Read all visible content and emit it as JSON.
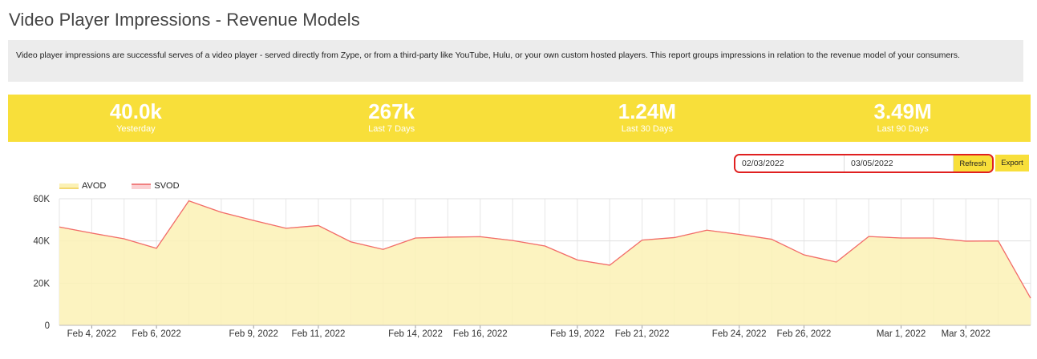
{
  "page": {
    "title": "Video Player Impressions - Revenue Models",
    "description": "Video player impressions are successful serves of a video player - served directly from Zype, or from a third-party like YouTube, Hulu, or your own custom hosted players. This report groups impressions in relation to the revenue model of your consumers."
  },
  "stats": [
    {
      "value": "40.0k",
      "label": "Yesterday"
    },
    {
      "value": "267k",
      "label": "Last 7 Days"
    },
    {
      "value": "1.24M",
      "label": "Last 30 Days"
    },
    {
      "value": "3.49M",
      "label": "Last 90 Days"
    }
  ],
  "controls": {
    "start_date": "02/03/2022",
    "end_date": "03/05/2022",
    "refresh_label": "Refresh",
    "export_label": "Export"
  },
  "colors": {
    "accent": "#f8df3a",
    "avod_fill": "#fbf1b5",
    "svod_line": "#f26b6b"
  },
  "chart_data": {
    "type": "area",
    "legend": [
      {
        "name": "AVOD"
      },
      {
        "name": "SVOD"
      }
    ],
    "legend_position": "top-left",
    "grid": true,
    "ylim": [
      0,
      60000
    ],
    "yticks": [
      0,
      20000,
      40000,
      60000
    ],
    "ytick_labels": [
      "0",
      "20K",
      "40K",
      "60K"
    ],
    "x": [
      "Feb 3, 2022",
      "Feb 4, 2022",
      "Feb 5, 2022",
      "Feb 6, 2022",
      "Feb 7, 2022",
      "Feb 8, 2022",
      "Feb 9, 2022",
      "Feb 10, 2022",
      "Feb 11, 2022",
      "Feb 12, 2022",
      "Feb 13, 2022",
      "Feb 14, 2022",
      "Feb 15, 2022",
      "Feb 16, 2022",
      "Feb 17, 2022",
      "Feb 18, 2022",
      "Feb 19, 2022",
      "Feb 20, 2022",
      "Feb 21, 2022",
      "Feb 22, 2022",
      "Feb 23, 2022",
      "Feb 24, 2022",
      "Feb 25, 2022",
      "Feb 26, 2022",
      "Feb 27, 2022",
      "Feb 28, 2022",
      "Mar 1, 2022",
      "Mar 2, 2022",
      "Mar 3, 2022",
      "Mar 4, 2022",
      "Mar 5, 2022"
    ],
    "xtick_labels": [
      {
        "x": "Feb 4, 2022",
        "label": "Feb 4, 2022"
      },
      {
        "x": "Feb 6, 2022",
        "label": "Feb 6, 2022"
      },
      {
        "x": "Feb 9, 2022",
        "label": "Feb 9, 2022"
      },
      {
        "x": "Feb 11, 2022",
        "label": "Feb 11, 2022"
      },
      {
        "x": "Feb 14, 2022",
        "label": "Feb 14, 2022"
      },
      {
        "x": "Feb 16, 2022",
        "label": "Feb 16, 2022"
      },
      {
        "x": "Feb 19, 2022",
        "label": "Feb 19, 2022"
      },
      {
        "x": "Feb 21, 2022",
        "label": "Feb 21, 2022"
      },
      {
        "x": "Feb 24, 2022",
        "label": "Feb 24, 2022"
      },
      {
        "x": "Feb 26, 2022",
        "label": "Feb 26, 2022"
      },
      {
        "x": "Mar 1, 2022",
        "label": "Mar 1, 2022"
      },
      {
        "x": "Mar 3, 2022",
        "label": "Mar 3, 2022"
      }
    ],
    "series": [
      {
        "name": "AVOD",
        "values": [
          46600,
          43700,
          41000,
          36500,
          59000,
          53600,
          49700,
          46000,
          47300,
          39600,
          36000,
          41400,
          41800,
          42000,
          40200,
          37600,
          31000,
          28500,
          40400,
          41600,
          45100,
          43100,
          40800,
          33400,
          30000,
          42100,
          41400,
          41400,
          39900,
          40000,
          12900
        ]
      },
      {
        "name": "SVOD",
        "values": [
          0,
          0,
          0,
          0,
          0,
          0,
          0,
          0,
          0,
          0,
          0,
          0,
          0,
          0,
          0,
          0,
          0,
          0,
          0,
          0,
          0,
          0,
          0,
          0,
          0,
          0,
          0,
          0,
          0,
          0,
          0
        ]
      }
    ]
  }
}
